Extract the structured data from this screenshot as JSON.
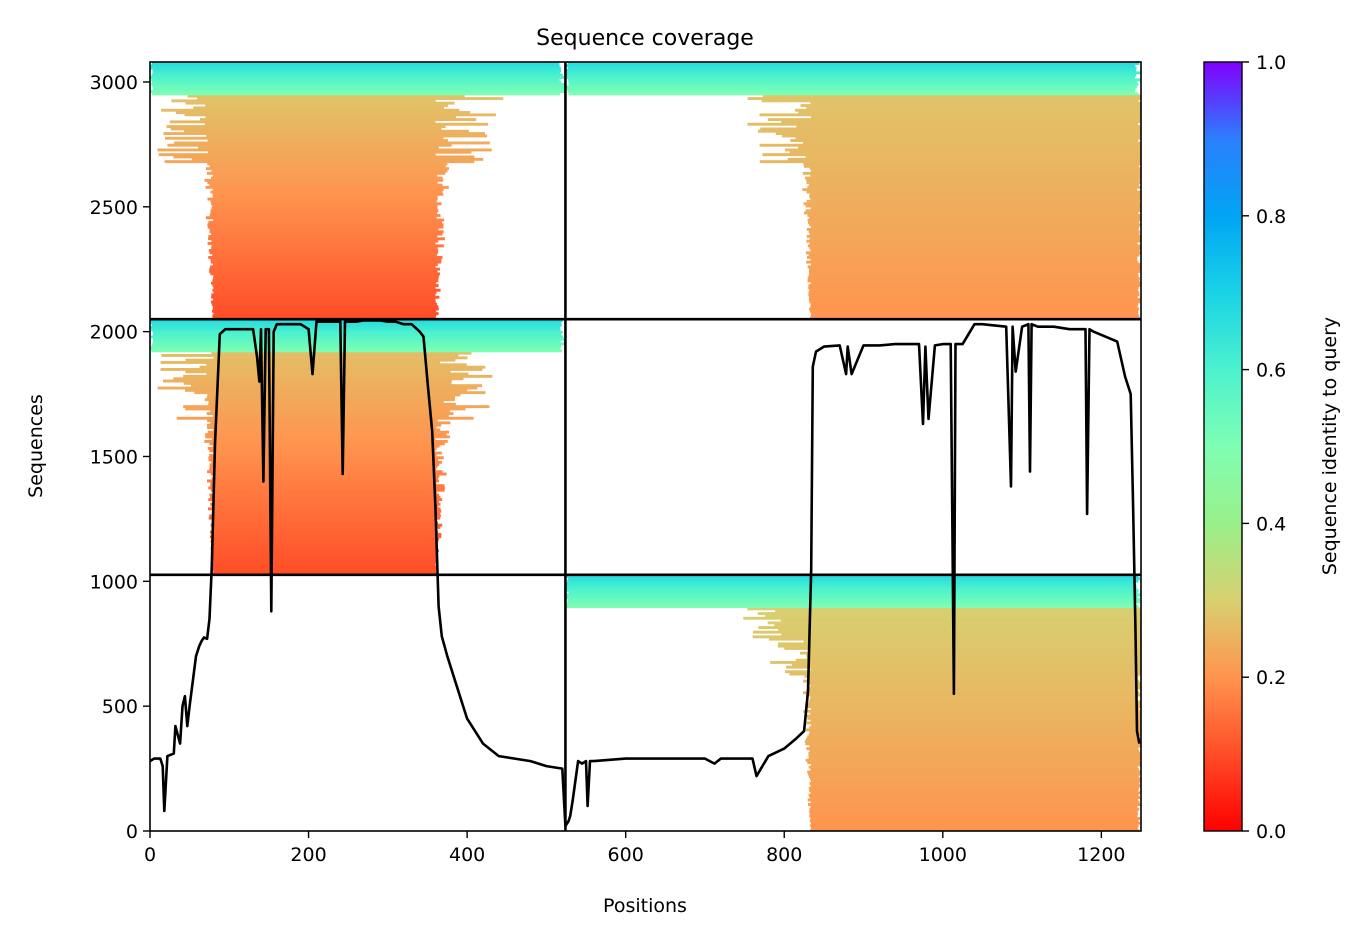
{
  "chart_data": {
    "type": "heatmap",
    "title": "Sequence coverage",
    "xlabel": "Positions",
    "ylabel": "Sequences",
    "xlim": [
      0,
      1250
    ],
    "ylim": [
      0,
      3080
    ],
    "xticks": [
      0,
      200,
      400,
      600,
      800,
      1000,
      1200
    ],
    "yticks": [
      0,
      500,
      1000,
      1500,
      2000,
      2500,
      3000
    ],
    "grid": false,
    "colorbar": {
      "label": "Sequence identity to query",
      "colormap": "rainbow_r",
      "min": 0.0,
      "max": 1.0,
      "ticks": [
        0.0,
        0.2,
        0.4,
        0.6,
        0.8,
        1.0
      ],
      "tick_labels": [
        "0.0",
        "0.2",
        "0.4",
        "0.6",
        "0.8",
        "1.0"
      ]
    },
    "domain_boundaries": {
      "x": [
        524
      ],
      "y": [
        1026,
        2050
      ]
    },
    "blocks": [
      {
        "name": "block-bottom-right",
        "x_range": [
          524,
          1250
        ],
        "y_range": [
          0,
          1026
        ],
        "aligned_x": [
          834,
          1245
        ],
        "identity_top": 0.65,
        "identity_bulk": 0.25
      },
      {
        "name": "block-middle-left",
        "x_range": [
          0,
          524
        ],
        "y_range": [
          1026,
          2050
        ],
        "aligned_x": [
          80,
          360
        ],
        "identity_top": 0.65,
        "identity_bulk": 0.22
      },
      {
        "name": "block-top-left",
        "x_range": [
          0,
          524
        ],
        "y_range": [
          2050,
          3080
        ],
        "aligned_x": [
          80,
          360
        ],
        "identity_top": 0.65,
        "identity_bulk": 0.23
      },
      {
        "name": "block-top-right",
        "x_range": [
          524,
          1250
        ],
        "y_range": [
          2050,
          3080
        ],
        "aligned_x": [
          834,
          1245
        ],
        "identity_top": 0.65,
        "identity_bulk": 0.23
      }
    ],
    "coverage_line": {
      "color": "#000000",
      "x": [
        0,
        5,
        13,
        16,
        18,
        22,
        30,
        32,
        38,
        41,
        44,
        47,
        50,
        56,
        58,
        62,
        65,
        68,
        72,
        75,
        78,
        82,
        88,
        95,
        100,
        110,
        120,
        130,
        135,
        138,
        140,
        143,
        146,
        150,
        153,
        156,
        160,
        170,
        180,
        190,
        200,
        205,
        210,
        220,
        230,
        240,
        243,
        246,
        250,
        260,
        270,
        280,
        290,
        300,
        310,
        320,
        330,
        340,
        345,
        350,
        356,
        360,
        364,
        368,
        375,
        385,
        400,
        420,
        440,
        460,
        480,
        500,
        520,
        524,
        526,
        528,
        530,
        533,
        540,
        545,
        550,
        552,
        555,
        560,
        600,
        650,
        700,
        712,
        720,
        760,
        765,
        780,
        800,
        815,
        825,
        830,
        834,
        836,
        840,
        850,
        870,
        878,
        880,
        885,
        900,
        920,
        940,
        970,
        975,
        978,
        982,
        990,
        1000,
        1010,
        1014,
        1016,
        1020,
        1025,
        1040,
        1050,
        1080,
        1086,
        1088,
        1092,
        1100,
        1108,
        1110,
        1112,
        1120,
        1140,
        1160,
        1180,
        1182,
        1185,
        1190,
        1220,
        1230,
        1237,
        1240,
        1243,
        1245,
        1248
      ],
      "y": [
        280,
        290,
        290,
        260,
        80,
        300,
        310,
        420,
        350,
        500,
        540,
        420,
        500,
        650,
        700,
        740,
        760,
        775,
        770,
        850,
        1060,
        1550,
        1990,
        2010,
        2010,
        2010,
        2010,
        2010,
        1900,
        1800,
        2010,
        1400,
        2010,
        2010,
        880,
        2000,
        2030,
        2030,
        2030,
        2030,
        2010,
        1830,
        2040,
        2040,
        2040,
        2040,
        1430,
        2040,
        2040,
        2040,
        2045,
        2045,
        2045,
        2040,
        2040,
        2030,
        2030,
        2000,
        1980,
        1800,
        1600,
        1300,
        900,
        780,
        700,
        600,
        450,
        350,
        300,
        290,
        280,
        260,
        250,
        20,
        30,
        40,
        60,
        120,
        280,
        270,
        280,
        100,
        280,
        280,
        290,
        290,
        290,
        270,
        290,
        290,
        220,
        300,
        330,
        370,
        400,
        560,
        1050,
        1860,
        1920,
        1940,
        1945,
        1830,
        1940,
        1830,
        1945,
        1945,
        1950,
        1950,
        1630,
        1940,
        1650,
        1945,
        1950,
        1950,
        550,
        1950,
        1950,
        1950,
        2030,
        2030,
        2020,
        1380,
        2020,
        1840,
        2020,
        2030,
        1440,
        2030,
        2020,
        2020,
        2010,
        2010,
        1270,
        2010,
        2000,
        1960,
        1820,
        1750,
        1300,
        800,
        400,
        350
      ]
    }
  }
}
